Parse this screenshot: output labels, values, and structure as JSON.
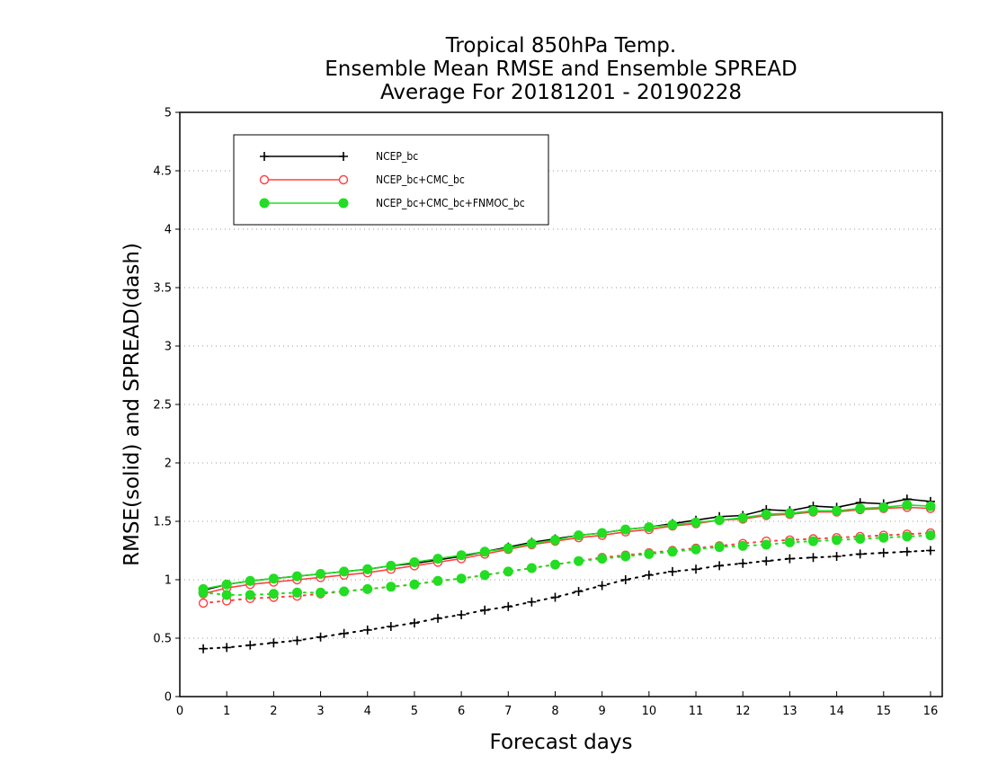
{
  "chart_data": {
    "type": "line",
    "title": [
      "Tropical 850hPa Temp.",
      "Ensemble Mean RMSE and Ensemble SPREAD",
      "Average For 20181201 - 20190228"
    ],
    "xlabel": "Forecast days",
    "ylabel": "RMSE(solid) and SPREAD(dash)",
    "xlim": [
      0,
      16.25
    ],
    "ylim": [
      0,
      5
    ],
    "xticks": [
      0,
      1,
      2,
      3,
      4,
      5,
      6,
      7,
      8,
      9,
      10,
      11,
      12,
      13,
      14,
      15,
      16
    ],
    "yticks": [
      0,
      0.5,
      1,
      1.5,
      2,
      2.5,
      3,
      3.5,
      4,
      4.5,
      5
    ],
    "ytick_labels": [
      "0",
      "0.5",
      "1",
      "1.5",
      "2",
      "2.5",
      "3",
      "3.5",
      "4",
      "4.5",
      "5"
    ],
    "grid": "horizontal dotted",
    "legend_position": "top-left",
    "x": [
      0.5,
      1,
      1.5,
      2,
      2.5,
      3,
      3.5,
      4,
      4.5,
      5,
      5.5,
      6,
      6.5,
      7,
      7.5,
      8,
      8.5,
      9,
      9.5,
      10,
      10.5,
      11,
      11.5,
      12,
      12.5,
      13,
      13.5,
      14,
      14.5,
      15,
      15.5,
      16
    ],
    "series": [
      {
        "name": "NCEP_bc",
        "color": "#000000",
        "marker": "plus",
        "rmse": [
          0.91,
          0.96,
          0.99,
          1.01,
          1.03,
          1.05,
          1.07,
          1.09,
          1.12,
          1.14,
          1.17,
          1.2,
          1.24,
          1.28,
          1.32,
          1.35,
          1.38,
          1.4,
          1.43,
          1.45,
          1.48,
          1.51,
          1.54,
          1.55,
          1.6,
          1.59,
          1.63,
          1.62,
          1.66,
          1.65,
          1.69,
          1.67
        ],
        "spread": [
          0.41,
          0.42,
          0.44,
          0.46,
          0.48,
          0.51,
          0.54,
          0.57,
          0.6,
          0.63,
          0.67,
          0.7,
          0.74,
          0.77,
          0.81,
          0.85,
          0.9,
          0.95,
          1.0,
          1.04,
          1.07,
          1.09,
          1.12,
          1.14,
          1.16,
          1.18,
          1.19,
          1.2,
          1.22,
          1.23,
          1.24,
          1.25
        ]
      },
      {
        "name": "NCEP_bc+CMC_bc",
        "color": "#ff4040",
        "marker": "open-circle",
        "rmse": [
          0.88,
          0.93,
          0.96,
          0.98,
          1.0,
          1.02,
          1.04,
          1.06,
          1.09,
          1.12,
          1.15,
          1.18,
          1.22,
          1.26,
          1.3,
          1.33,
          1.36,
          1.38,
          1.41,
          1.43,
          1.46,
          1.48,
          1.51,
          1.52,
          1.55,
          1.56,
          1.58,
          1.58,
          1.6,
          1.61,
          1.62,
          1.61
        ],
        "spread": [
          0.8,
          0.82,
          0.84,
          0.85,
          0.86,
          0.88,
          0.9,
          0.92,
          0.94,
          0.96,
          0.99,
          1.01,
          1.04,
          1.07,
          1.1,
          1.13,
          1.16,
          1.19,
          1.21,
          1.23,
          1.25,
          1.27,
          1.29,
          1.31,
          1.33,
          1.34,
          1.35,
          1.36,
          1.37,
          1.38,
          1.39,
          1.4
        ]
      },
      {
        "name": "NCEP_bc+CMC_bc+FNMOC_bc",
        "color": "#22dd22",
        "marker": "filled-circle",
        "rmse": [
          0.92,
          0.96,
          0.99,
          1.01,
          1.03,
          1.05,
          1.07,
          1.09,
          1.12,
          1.15,
          1.18,
          1.21,
          1.24,
          1.27,
          1.31,
          1.34,
          1.38,
          1.4,
          1.43,
          1.45,
          1.47,
          1.49,
          1.51,
          1.53,
          1.56,
          1.57,
          1.59,
          1.59,
          1.61,
          1.62,
          1.64,
          1.63
        ],
        "spread": [
          0.89,
          0.87,
          0.87,
          0.88,
          0.89,
          0.89,
          0.9,
          0.92,
          0.94,
          0.96,
          0.99,
          1.01,
          1.04,
          1.07,
          1.1,
          1.13,
          1.16,
          1.18,
          1.2,
          1.22,
          1.24,
          1.26,
          1.28,
          1.29,
          1.3,
          1.32,
          1.33,
          1.34,
          1.35,
          1.36,
          1.37,
          1.38
        ]
      }
    ]
  }
}
